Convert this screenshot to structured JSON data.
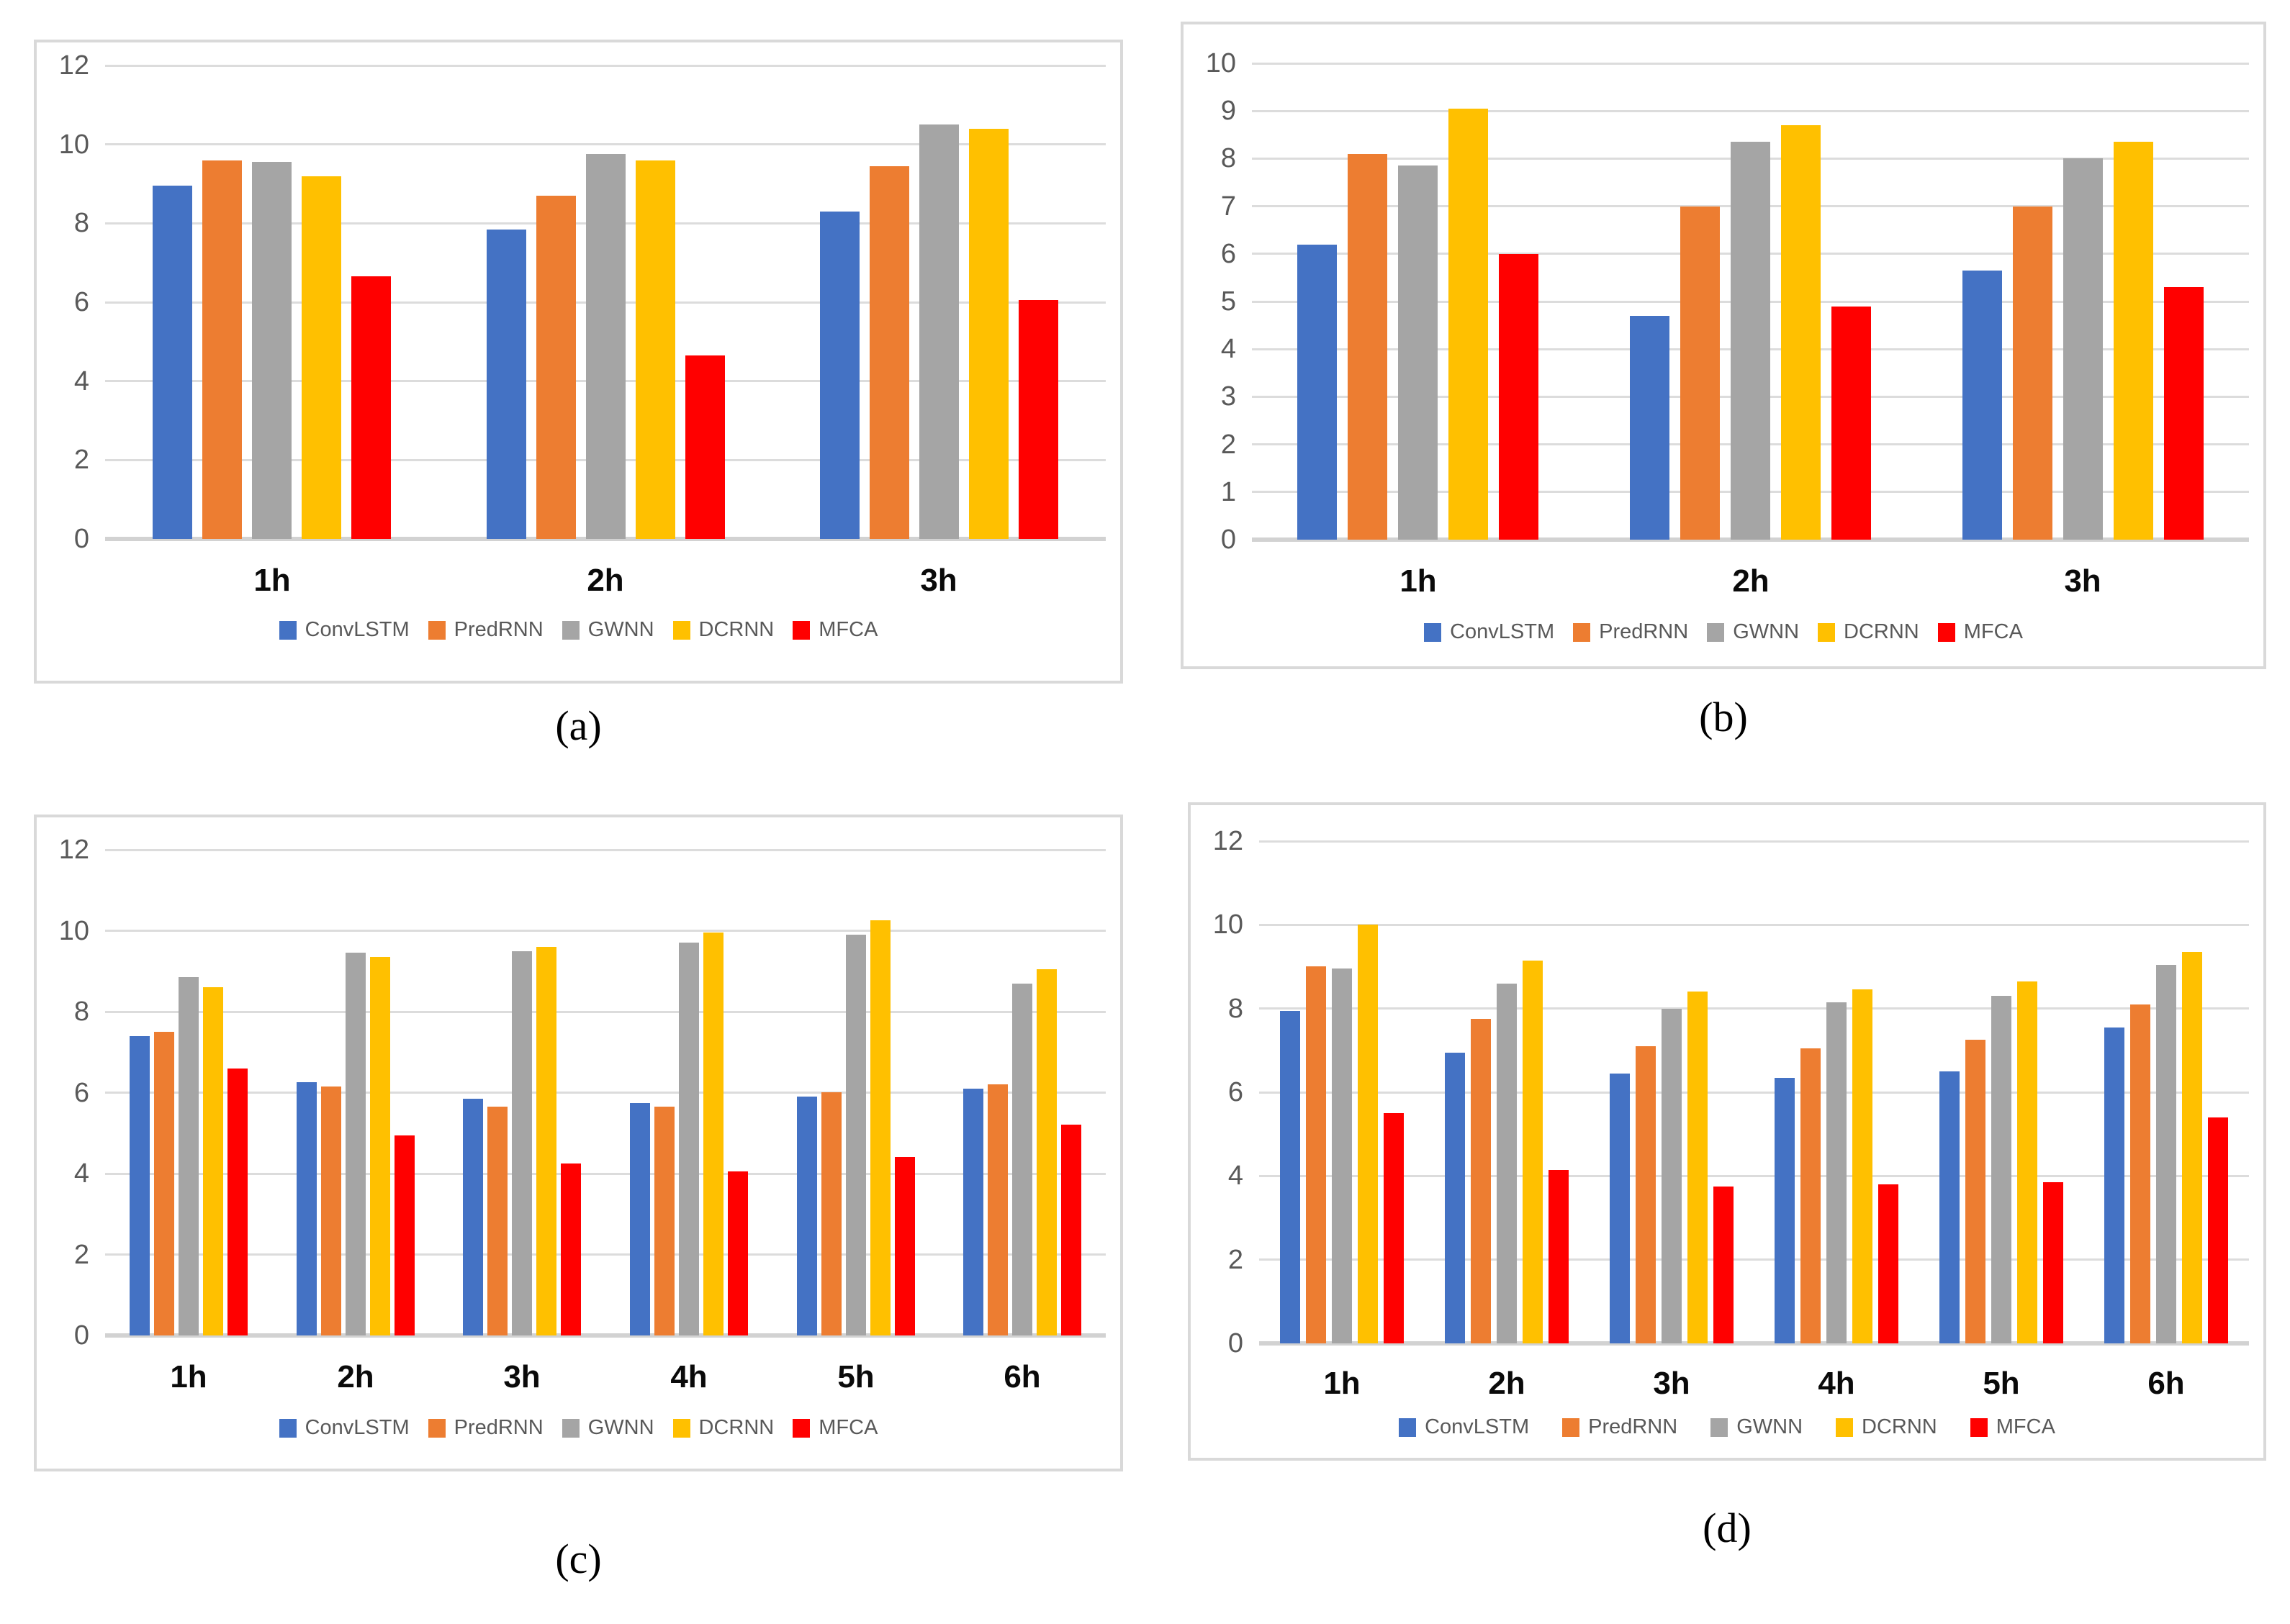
{
  "theme": {
    "panel_border": "#D9D9D9",
    "grid_color": "#DCDCDC",
    "axis_color": "#D2D2D2",
    "tick_text_color": "#595959",
    "category_text_color": "#0a0a0a",
    "legend_text_color": "#595959",
    "series_colors": {
      "ConvLSTM": "#4472C4",
      "PredRNN": "#ED7D31",
      "GWNN": "#A5A5A5",
      "DCRNN": "#FFC000",
      "MFCA": "#FF0000"
    }
  },
  "chart_data": [
    {
      "id": "a",
      "caption": "(a)",
      "type": "bar",
      "grid": true,
      "legend_position": "bottom",
      "categories": [
        "1h",
        "2h",
        "3h"
      ],
      "yticks": [
        0,
        2,
        4,
        6,
        8,
        10,
        12
      ],
      "ylim": [
        0,
        12
      ],
      "series": [
        {
          "name": "ConvLSTM",
          "color": "#4472C4",
          "values": [
            8.95,
            7.85,
            8.3
          ]
        },
        {
          "name": "PredRNN",
          "color": "#ED7D31",
          "values": [
            9.6,
            8.7,
            9.45
          ]
        },
        {
          "name": "GWNN",
          "color": "#A5A5A5",
          "values": [
            9.55,
            9.75,
            10.5
          ]
        },
        {
          "name": "DCRNN",
          "color": "#FFC000",
          "values": [
            9.2,
            9.6,
            10.4
          ]
        },
        {
          "name": "MFCA",
          "color": "#FF0000",
          "values": [
            6.65,
            4.65,
            6.05
          ]
        }
      ]
    },
    {
      "id": "b",
      "caption": "(b)",
      "type": "bar",
      "grid": true,
      "legend_position": "bottom",
      "categories": [
        "1h",
        "2h",
        "3h"
      ],
      "yticks": [
        0,
        1,
        2,
        3,
        4,
        5,
        6,
        7,
        8,
        9,
        10
      ],
      "ylim": [
        0,
        10
      ],
      "series": [
        {
          "name": "ConvLSTM",
          "color": "#4472C4",
          "values": [
            6.2,
            4.7,
            5.65
          ]
        },
        {
          "name": "PredRNN",
          "color": "#ED7D31",
          "values": [
            8.1,
            7.0,
            7.0
          ]
        },
        {
          "name": "GWNN",
          "color": "#A5A5A5",
          "values": [
            7.85,
            8.35,
            8.0
          ]
        },
        {
          "name": "DCRNN",
          "color": "#FFC000",
          "values": [
            9.05,
            8.7,
            8.35
          ]
        },
        {
          "name": "MFCA",
          "color": "#FF0000",
          "values": [
            6.0,
            4.9,
            5.3
          ]
        }
      ]
    },
    {
      "id": "c",
      "caption": "(c)",
      "type": "bar",
      "grid": true,
      "legend_position": "bottom",
      "categories": [
        "1h",
        "2h",
        "3h",
        "4h",
        "5h",
        "6h"
      ],
      "yticks": [
        0,
        2,
        4,
        6,
        8,
        10,
        12
      ],
      "ylim": [
        0,
        12
      ],
      "series": [
        {
          "name": "ConvLSTM",
          "color": "#4472C4",
          "values": [
            7.4,
            6.25,
            5.85,
            5.75,
            5.9,
            6.1
          ]
        },
        {
          "name": "PredRNN",
          "color": "#ED7D31",
          "values": [
            7.5,
            6.15,
            5.65,
            5.65,
            6.0,
            6.2
          ]
        },
        {
          "name": "GWNN",
          "color": "#A5A5A5",
          "values": [
            8.85,
            9.45,
            9.5,
            9.7,
            9.9,
            8.7
          ]
        },
        {
          "name": "DCRNN",
          "color": "#FFC000",
          "values": [
            8.6,
            9.35,
            9.6,
            9.95,
            10.25,
            9.05
          ]
        },
        {
          "name": "MFCA",
          "color": "#FF0000",
          "values": [
            6.6,
            4.95,
            4.25,
            4.05,
            4.4,
            5.2
          ]
        }
      ]
    },
    {
      "id": "d",
      "caption": "(d)",
      "type": "bar",
      "grid": true,
      "legend_position": "bottom",
      "categories": [
        "1h",
        "2h",
        "3h",
        "4h",
        "5h",
        "6h"
      ],
      "yticks": [
        0,
        2,
        4,
        6,
        8,
        10,
        12
      ],
      "ylim": [
        0,
        12
      ],
      "series": [
        {
          "name": "ConvLSTM",
          "color": "#4472C4",
          "values": [
            7.95,
            6.95,
            6.45,
            6.35,
            6.5,
            7.55
          ]
        },
        {
          "name": "PredRNN",
          "color": "#ED7D31",
          "values": [
            9.0,
            7.75,
            7.1,
            7.05,
            7.25,
            8.1
          ]
        },
        {
          "name": "GWNN",
          "color": "#A5A5A5",
          "values": [
            8.95,
            8.6,
            8.0,
            8.15,
            8.3,
            9.05
          ]
        },
        {
          "name": "DCRNN",
          "color": "#FFC000",
          "values": [
            10.0,
            9.15,
            8.4,
            8.45,
            8.65,
            9.35
          ]
        },
        {
          "name": "MFCA",
          "color": "#FF0000",
          "values": [
            5.5,
            4.15,
            3.75,
            3.8,
            3.85,
            5.4
          ]
        }
      ]
    }
  ]
}
